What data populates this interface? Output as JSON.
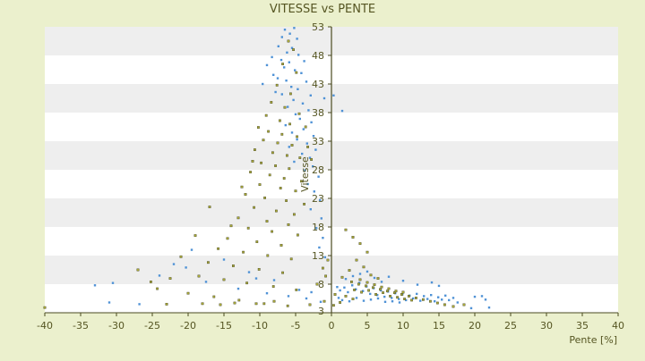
{
  "chart_data": {
    "type": "scatter",
    "title": "VITESSE vs PENTE",
    "xlabel": "Pente [%]",
    "ylabel": "Vitesse",
    "xlim": [
      -40,
      40
    ],
    "ylim": [
      3,
      53
    ],
    "x_ticks": [
      "-40",
      "-35",
      "-30",
      "-25",
      "-20",
      "-15",
      "-10",
      "-5",
      "0",
      "5",
      "10",
      "15",
      "20",
      "25",
      "30",
      "35",
      "40"
    ],
    "y_ticks": [
      "3",
      "8",
      "13",
      "18",
      "23",
      "28",
      "33",
      "38",
      "43",
      "48",
      "53"
    ],
    "grid": "horizontal-bands",
    "legend": "none",
    "colors": {
      "page_background": "#ebf0cd",
      "plot_band_light": "#ffffff",
      "plot_band_dark": "#eeeeee",
      "axis": "#4a4a20",
      "text": "#555522",
      "series_1": "#4f92d6",
      "series_2": "#a8a838"
    },
    "series": [
      {
        "color": "#4f92d6",
        "points": [
          [
            -6.5,
            52.5
          ],
          [
            -5.8,
            51.8
          ],
          [
            -5.2,
            52.8
          ],
          [
            -6.9,
            51.2
          ],
          [
            -4.8,
            50.9
          ],
          [
            -7.4,
            49.6
          ],
          [
            -5.5,
            49.3
          ],
          [
            -6.2,
            48.5
          ],
          [
            -4.6,
            48.1
          ],
          [
            -8.3,
            47.7
          ],
          [
            -7.0,
            47.2
          ],
          [
            -5.9,
            46.8
          ],
          [
            -3.8,
            47.0
          ],
          [
            -9.0,
            46.3
          ],
          [
            -6.6,
            45.9
          ],
          [
            -5.1,
            45.4
          ],
          [
            -4.2,
            44.9
          ],
          [
            -8.1,
            44.6
          ],
          [
            -7.5,
            44.0
          ],
          [
            -6.3,
            43.6
          ],
          [
            -3.5,
            43.4
          ],
          [
            -9.6,
            43.0
          ],
          [
            -5.6,
            42.5
          ],
          [
            -4.7,
            42.1
          ],
          [
            -7.8,
            41.6
          ],
          [
            -6.9,
            41.2
          ],
          [
            -2.9,
            41.0
          ],
          [
            -1.0,
            40.5
          ],
          [
            0.3,
            41.0
          ],
          [
            -5.3,
            40.2
          ],
          [
            -4.0,
            39.6
          ],
          [
            -6.1,
            39.0
          ],
          [
            -3.2,
            38.4
          ],
          [
            1.5,
            38.3
          ],
          [
            -5.0,
            37.7
          ],
          [
            -4.4,
            36.9
          ],
          [
            -2.8,
            36.3
          ],
          [
            -6.4,
            35.8
          ],
          [
            -3.9,
            35.1
          ],
          [
            -5.5,
            34.5
          ],
          [
            -2.5,
            33.9
          ],
          [
            -4.8,
            33.3
          ],
          [
            -3.4,
            32.6
          ],
          [
            -5.9,
            32.0
          ],
          [
            -2.2,
            31.5
          ],
          [
            -4.1,
            30.8
          ],
          [
            -3.0,
            30.1
          ],
          [
            -5.2,
            29.4
          ],
          [
            -2.6,
            28.6
          ],
          [
            -3.7,
            27.9
          ],
          [
            -1.8,
            26.8
          ],
          [
            -3.3,
            25.5
          ],
          [
            -2.4,
            24.2
          ],
          [
            -1.6,
            22.7
          ],
          [
            -2.9,
            21.1
          ],
          [
            -1.4,
            19.5
          ],
          [
            -2.1,
            17.8
          ],
          [
            -1.2,
            16.1
          ],
          [
            -1.7,
            14.4
          ],
          [
            -0.9,
            12.7
          ],
          [
            -33.0,
            7.8
          ],
          [
            -30.5,
            8.2
          ],
          [
            -31.0,
            4.8
          ],
          [
            -26.8,
            4.5
          ],
          [
            -24.0,
            9.5
          ],
          [
            -22.0,
            11.5
          ],
          [
            -20.3,
            10.9
          ],
          [
            -17.5,
            8.4
          ],
          [
            -13.0,
            7.2
          ],
          [
            -9.0,
            6.4
          ],
          [
            -6.0,
            5.9
          ],
          [
            -3.5,
            5.5
          ],
          [
            -1.5,
            4.9
          ],
          [
            -4.5,
            7.0
          ],
          [
            -2.8,
            6.6
          ],
          [
            -8.0,
            8.7
          ],
          [
            -11.5,
            10.1
          ],
          [
            -15.0,
            12.3
          ],
          [
            -19.5,
            14.0
          ],
          [
            -10.5,
            9.0
          ],
          [
            1.2,
            6.9
          ],
          [
            1.8,
            7.4
          ],
          [
            2.3,
            6.6
          ],
          [
            2.9,
            7.8
          ],
          [
            3.4,
            7.1
          ],
          [
            3.9,
            8.2
          ],
          [
            4.4,
            6.8
          ],
          [
            4.9,
            7.6
          ],
          [
            5.4,
            6.3
          ],
          [
            5.9,
            7.3
          ],
          [
            6.4,
            6.1
          ],
          [
            6.9,
            6.9
          ],
          [
            7.4,
            5.8
          ],
          [
            7.9,
            6.7
          ],
          [
            8.4,
            5.6
          ],
          [
            8.9,
            6.4
          ],
          [
            9.4,
            5.4
          ],
          [
            9.9,
            6.2
          ],
          [
            10.4,
            5.2
          ],
          [
            10.9,
            6.0
          ],
          [
            11.4,
            5.5
          ],
          [
            11.9,
            6.3
          ],
          [
            12.4,
            5.1
          ],
          [
            12.9,
            5.9
          ],
          [
            13.4,
            5.4
          ],
          [
            13.9,
            6.1
          ],
          [
            14.4,
            5.0
          ],
          [
            14.9,
            5.7
          ],
          [
            15.4,
            5.3
          ],
          [
            15.9,
            6.0
          ],
          [
            16.4,
            5.2
          ],
          [
            17.0,
            5.6
          ],
          [
            17.6,
            4.8
          ],
          [
            20.0,
            5.8
          ],
          [
            21.0,
            5.9
          ],
          [
            21.5,
            5.3
          ],
          [
            22.0,
            3.9
          ],
          [
            19.5,
            3.8
          ],
          [
            1.5,
            5.2
          ],
          [
            2.5,
            5.0
          ],
          [
            3.5,
            5.6
          ],
          [
            4.5,
            5.1
          ],
          [
            5.5,
            5.3
          ],
          [
            6.5,
            5.5
          ],
          [
            7.5,
            4.9
          ],
          [
            8.5,
            5.0
          ],
          [
            9.5,
            4.8
          ],
          [
            3.0,
            9.4
          ],
          [
            4.0,
            9.8
          ],
          [
            5.0,
            10.2
          ],
          [
            6.0,
            9.1
          ],
          [
            2.0,
            8.9
          ],
          [
            0.8,
            7.5
          ],
          [
            1.0,
            5.6
          ],
          [
            12.0,
            7.9
          ],
          [
            14.0,
            8.3
          ],
          [
            15.0,
            7.7
          ],
          [
            10.0,
            8.6
          ],
          [
            8.0,
            9.3
          ],
          [
            7.0,
            8.4
          ]
        ]
      },
      {
        "color": "#a8a838",
        "points": [
          [
            -6.0,
            50.5
          ],
          [
            -5.3,
            49.0
          ],
          [
            -6.8,
            46.5
          ],
          [
            -4.9,
            45.0
          ],
          [
            -7.6,
            42.8
          ],
          [
            -5.7,
            41.3
          ],
          [
            -8.4,
            39.8
          ],
          [
            -6.5,
            38.9
          ],
          [
            -9.1,
            37.5
          ],
          [
            -4.5,
            37.8
          ],
          [
            -7.2,
            36.6
          ],
          [
            -5.8,
            36.0
          ],
          [
            -10.2,
            35.4
          ],
          [
            -3.6,
            35.5
          ],
          [
            -8.8,
            34.7
          ],
          [
            -6.9,
            34.2
          ],
          [
            -4.8,
            33.8
          ],
          [
            -9.5,
            33.2
          ],
          [
            -7.5,
            32.7
          ],
          [
            -5.5,
            32.3
          ],
          [
            -3.3,
            32.0
          ],
          [
            -10.7,
            31.5
          ],
          [
            -8.2,
            31.0
          ],
          [
            -6.2,
            30.5
          ],
          [
            -4.4,
            30.1
          ],
          [
            -2.8,
            29.8
          ],
          [
            -9.8,
            29.2
          ],
          [
            -7.8,
            28.7
          ],
          [
            -5.9,
            28.2
          ],
          [
            -11.3,
            27.6
          ],
          [
            -8.6,
            27.1
          ],
          [
            -6.6,
            26.5
          ],
          [
            -4.2,
            26.0
          ],
          [
            -10.0,
            25.4
          ],
          [
            -7.1,
            24.8
          ],
          [
            -5.0,
            24.3
          ],
          [
            -12.0,
            23.7
          ],
          [
            -9.3,
            23.1
          ],
          [
            -6.3,
            22.6
          ],
          [
            -3.8,
            22.0
          ],
          [
            -10.8,
            21.4
          ],
          [
            -7.7,
            20.8
          ],
          [
            -5.2,
            20.2
          ],
          [
            -13.0,
            19.6
          ],
          [
            -9.0,
            19.0
          ],
          [
            -6.0,
            18.4
          ],
          [
            -11.6,
            17.8
          ],
          [
            -8.3,
            17.2
          ],
          [
            -4.7,
            16.6
          ],
          [
            -14.5,
            16.0
          ],
          [
            -10.4,
            15.4
          ],
          [
            -7.0,
            14.8
          ],
          [
            -15.8,
            14.2
          ],
          [
            -12.3,
            13.6
          ],
          [
            -8.9,
            13.0
          ],
          [
            -5.6,
            12.4
          ],
          [
            -17.2,
            11.8
          ],
          [
            -13.7,
            11.2
          ],
          [
            -10.1,
            10.6
          ],
          [
            -6.8,
            10.0
          ],
          [
            -18.5,
            9.4
          ],
          [
            -15.0,
            8.8
          ],
          [
            -11.8,
            8.2
          ],
          [
            -8.1,
            7.6
          ],
          [
            -4.9,
            7.0
          ],
          [
            -20.0,
            6.4
          ],
          [
            -16.4,
            5.8
          ],
          [
            -12.9,
            5.2
          ],
          [
            -9.4,
            4.6
          ],
          [
            -6.1,
            4.2
          ],
          [
            -22.5,
            9.0
          ],
          [
            -25.2,
            8.4
          ],
          [
            -27.0,
            10.5
          ],
          [
            -24.3,
            7.2
          ],
          [
            -21.0,
            12.8
          ],
          [
            -19.0,
            16.5
          ],
          [
            -17.0,
            21.5
          ],
          [
            -14.0,
            18.2
          ],
          [
            -12.5,
            25.0
          ],
          [
            -11.0,
            29.5
          ],
          [
            -40.0,
            3.9
          ],
          [
            -23.0,
            4.5
          ],
          [
            -18.0,
            4.6
          ],
          [
            -15.5,
            4.4
          ],
          [
            -13.5,
            4.7
          ],
          [
            -10.5,
            4.6
          ],
          [
            -8.0,
            5.0
          ],
          [
            -3.0,
            4.4
          ],
          [
            -1.0,
            5.0
          ],
          [
            -2.0,
            8.0
          ],
          [
            2.0,
            17.5
          ],
          [
            3.0,
            16.2
          ],
          [
            4.0,
            15.1
          ],
          [
            5.0,
            13.6
          ],
          [
            3.5,
            12.2
          ],
          [
            4.5,
            11.0
          ],
          [
            2.5,
            10.4
          ],
          [
            5.5,
            9.6
          ],
          [
            6.5,
            9.0
          ],
          [
            1.5,
            9.2
          ],
          [
            2.8,
            8.4
          ],
          [
            3.8,
            8.0
          ],
          [
            4.8,
            7.7
          ],
          [
            5.8,
            7.4
          ],
          [
            6.8,
            7.1
          ],
          [
            7.8,
            6.8
          ],
          [
            8.8,
            6.5
          ],
          [
            9.8,
            6.2
          ],
          [
            10.8,
            5.9
          ],
          [
            11.8,
            5.6
          ],
          [
            12.8,
            5.3
          ],
          [
            13.8,
            5.0
          ],
          [
            14.8,
            4.7
          ],
          [
            15.8,
            4.4
          ],
          [
            17.0,
            4.1
          ],
          [
            18.5,
            4.4
          ],
          [
            3.2,
            7.0
          ],
          [
            4.2,
            6.6
          ],
          [
            5.2,
            6.9
          ],
          [
            6.2,
            6.2
          ],
          [
            7.2,
            6.5
          ],
          [
            8.2,
            5.9
          ],
          [
            9.2,
            5.7
          ],
          [
            10.2,
            5.4
          ],
          [
            11.2,
            5.2
          ],
          [
            4.0,
            8.8
          ],
          [
            5.0,
            8.3
          ],
          [
            6.0,
            7.9
          ],
          [
            7.0,
            7.5
          ],
          [
            8.0,
            7.2
          ],
          [
            9.0,
            6.8
          ],
          [
            10.0,
            6.6
          ],
          [
            2.0,
            5.9
          ],
          [
            3.0,
            5.4
          ],
          [
            1.2,
            4.8
          ],
          [
            0.5,
            6.2
          ],
          [
            -0.5,
            12.2
          ],
          [
            -1.2,
            10.8
          ],
          [
            -0.8,
            9.4
          ],
          [
            0.3,
            4.3
          ]
        ]
      }
    ]
  }
}
